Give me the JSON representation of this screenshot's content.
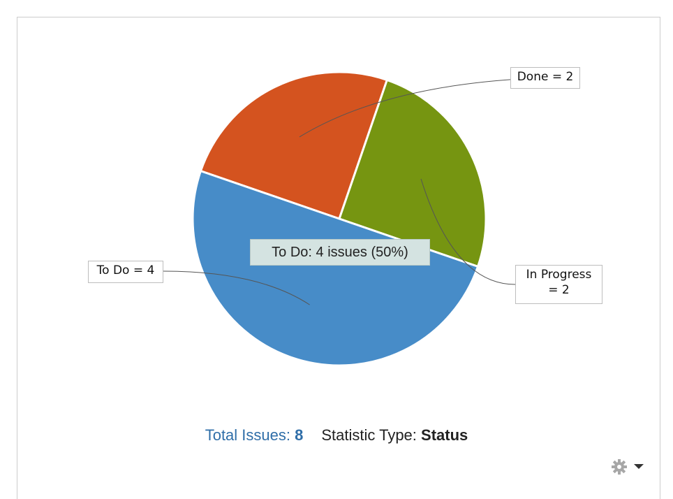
{
  "chart_data": {
    "type": "pie",
    "slices": [
      {
        "label": "Done",
        "value": 2,
        "color": "#d4531f",
        "label_text": "Done = 2"
      },
      {
        "label": "In Progress",
        "value": 2,
        "color": "#769511",
        "label_text": "In Progress\n= 2"
      },
      {
        "label": "To Do",
        "value": 4,
        "color": "#478cc8",
        "label_text": "To Do = 4"
      }
    ],
    "tooltip": "To Do: 4 issues (50%)"
  },
  "footer": {
    "total_label": "Total Issues:",
    "total_value": "8",
    "stat_label": "Statistic Type:",
    "stat_value": "Status"
  },
  "controls": {
    "settings_icon": "gear-icon",
    "dropdown_icon": "caret-down-icon"
  }
}
